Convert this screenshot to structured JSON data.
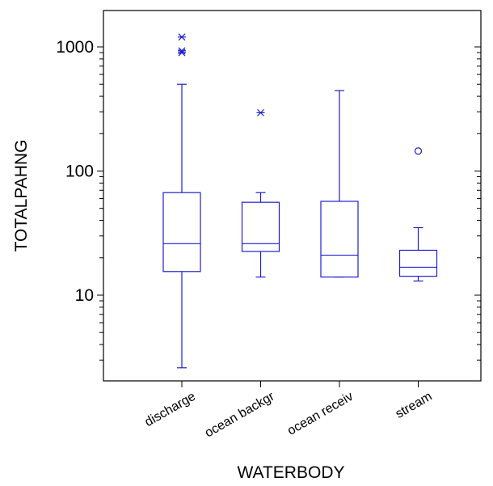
{
  "chart_data": {
    "type": "box",
    "xlabel": "WATERBODY",
    "ylabel": "TOTALPAHNG",
    "yscale": "log",
    "ylim": [
      2,
      2000
    ],
    "yticks": [
      10,
      100,
      1000
    ],
    "ytick_labels": [
      "10",
      "100",
      "1000"
    ],
    "grid": false,
    "color": "#1f1fcf",
    "categories": [
      "discharge",
      "ocean backgr",
      "ocean receiv",
      "stream"
    ],
    "boxes": [
      {
        "category": "discharge",
        "whisker_low": 2.6,
        "q1": 15.5,
        "median": 26,
        "q3": 67,
        "whisker_high": 500,
        "outliers": [
          {
            "value": 1200,
            "marker": "star"
          },
          {
            "value": 930,
            "marker": "star"
          },
          {
            "value": 900,
            "marker": "star"
          }
        ]
      },
      {
        "category": "ocean backgr",
        "whisker_low": 14,
        "q1": 22.5,
        "median": 26,
        "q3": 56,
        "whisker_high": 67,
        "outliers": [
          {
            "value": 295,
            "marker": "star"
          }
        ]
      },
      {
        "category": "ocean receiv",
        "whisker_low": 14,
        "q1": 14,
        "median": 21,
        "q3": 57,
        "whisker_high": 445,
        "outliers": []
      },
      {
        "category": "stream",
        "whisker_low": 13,
        "q1": 14.2,
        "median": 16.8,
        "q3": 23,
        "whisker_high": 35,
        "outliers": [
          {
            "value": 145,
            "marker": "circle"
          }
        ]
      }
    ]
  }
}
